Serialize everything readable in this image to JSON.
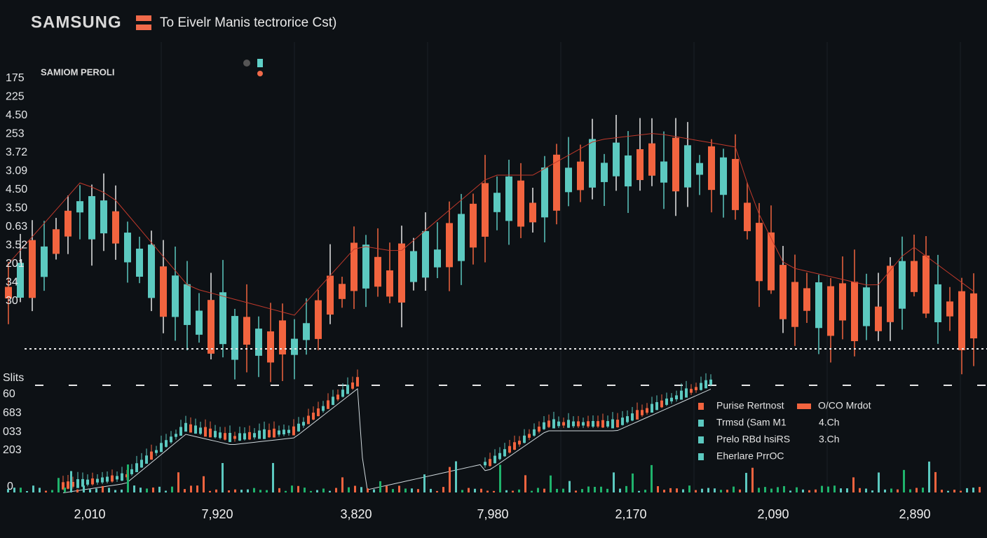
{
  "header": {
    "brand": "SAMSUNG",
    "subtitle": "To Eivelr Manis tectrorice Cst)"
  },
  "panel": {
    "label": "SAMIOM PEROLI",
    "y_labels": [
      "175",
      "225",
      "4.50",
      "253",
      "3.72",
      "3.09",
      "4.50",
      "3.50",
      "0.63",
      "3.52",
      "201",
      "34",
      "30"
    ]
  },
  "lower_panel": {
    "y_labels": [
      "Slits",
      "60",
      "683",
      "033",
      "203",
      "0"
    ]
  },
  "legend": {
    "left": [
      "Purise Rertnost",
      "Trmsd (Sam M1",
      "Prelo RBd hsiRS",
      "Eherlare PrrOC"
    ],
    "right": [
      "O/CO Mrdot",
      "4.Ch",
      "3.Ch"
    ]
  },
  "x_labels": [
    "2,010",
    "7,920",
    "3,820",
    "7,980",
    "2,170",
    "2,090",
    "2,890"
  ]
}
